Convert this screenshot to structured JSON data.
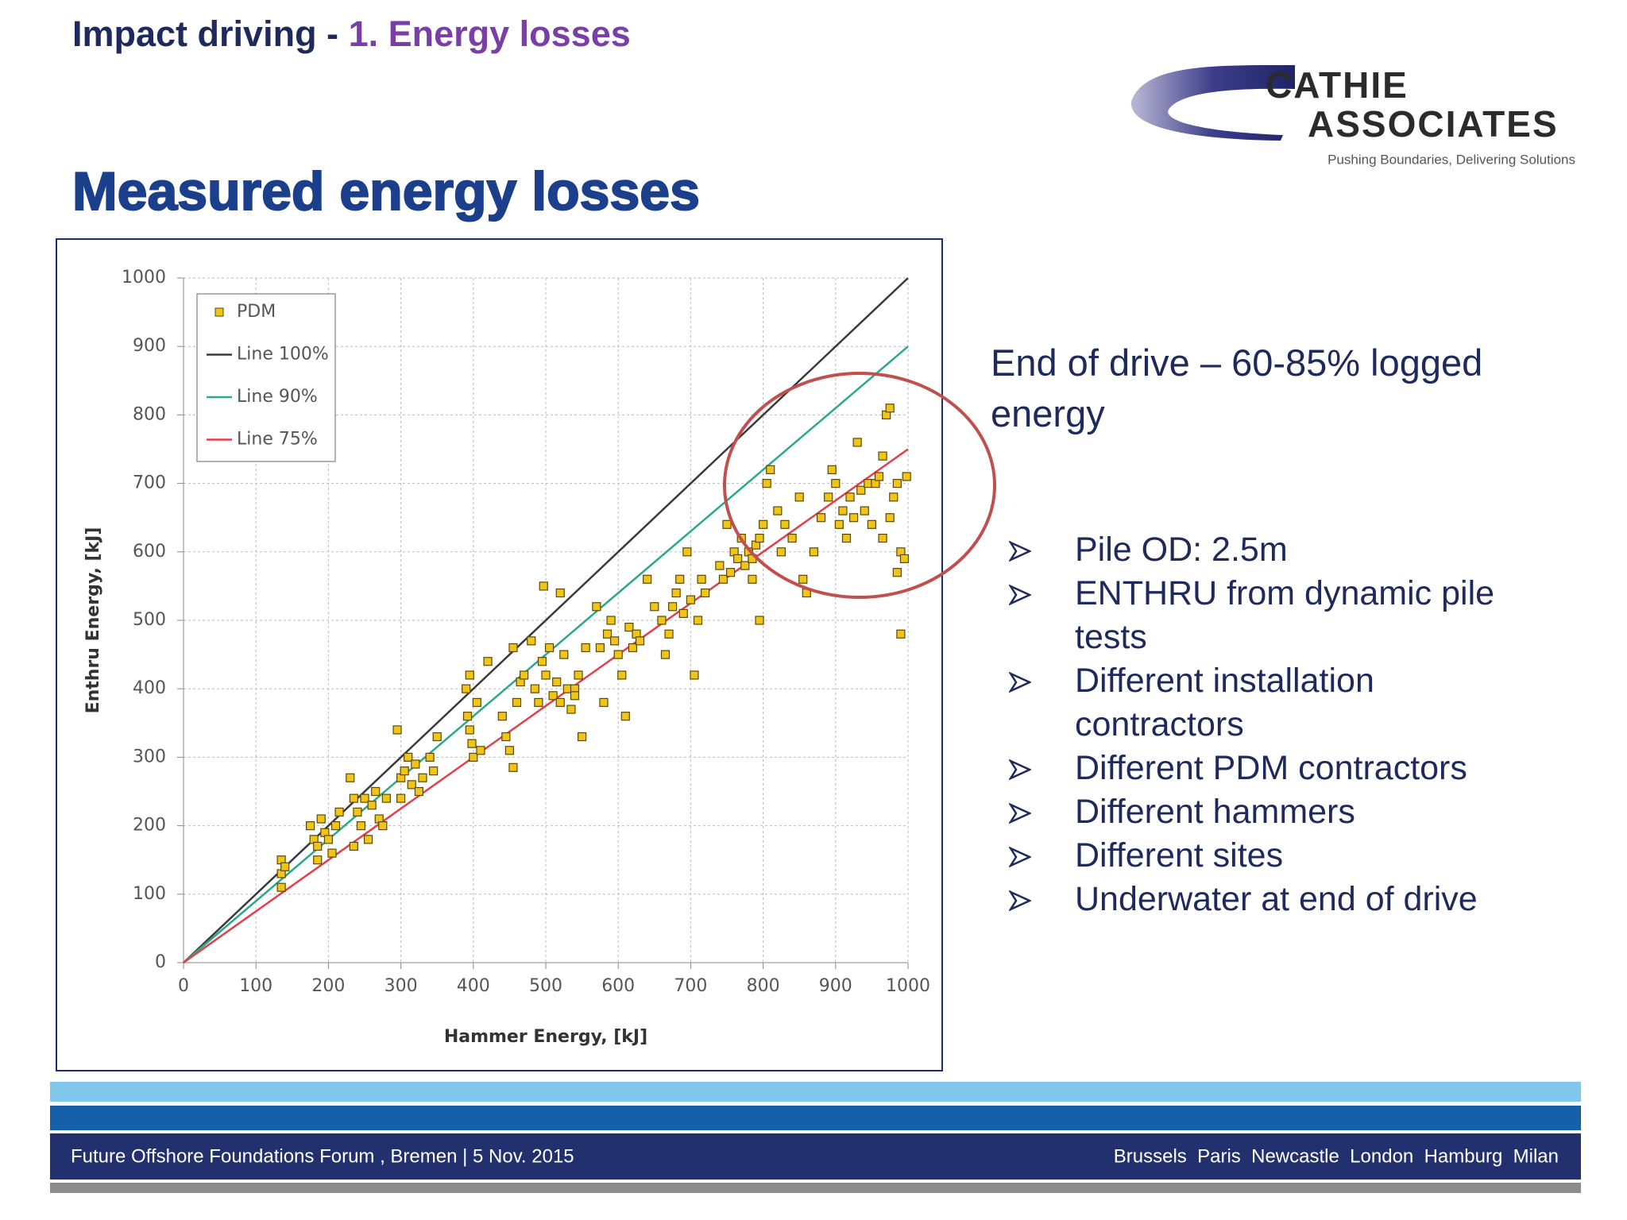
{
  "header": {
    "title_main": "Impact driving -",
    "title_sub": "1. Energy losses"
  },
  "logo": {
    "line1": "CATHIE",
    "line2": "ASSOCIATES",
    "tagline": "Pushing Boundaries, Delivering Solutions"
  },
  "heading": "Measured energy losses",
  "chart_data": {
    "type": "scatter",
    "x_label": "Hammer Energy, [kJ]",
    "y_label": "Enthru Energy, [kJ]",
    "xlim": [
      0,
      1000
    ],
    "ylim": [
      0,
      1000
    ],
    "xticks": [
      0,
      100,
      200,
      300,
      400,
      500,
      600,
      700,
      800,
      900,
      1000
    ],
    "yticks": [
      0,
      100,
      200,
      300,
      400,
      500,
      600,
      700,
      800,
      900,
      1000
    ],
    "grid": true,
    "legend": "upper left",
    "series": [
      {
        "name": "PDM",
        "mode": "markers",
        "color": "#f0c419",
        "x": [
          135,
          135,
          135,
          140,
          175,
          180,
          185,
          190,
          195,
          200,
          205,
          210,
          215,
          185,
          230,
          235,
          240,
          245,
          250,
          255,
          260,
          265,
          270,
          275,
          280,
          235,
          295,
          300,
          305,
          310,
          315,
          320,
          325,
          330,
          340,
          345,
          350,
          300,
          390,
          392,
          395,
          398,
          400,
          405,
          410,
          420,
          395,
          440,
          445,
          450,
          455,
          460,
          465,
          470,
          455,
          480,
          485,
          490,
          495,
          500,
          505,
          510,
          515,
          520,
          525,
          530,
          535,
          540,
          545,
          550,
          555,
          497,
          520,
          540,
          570,
          575,
          580,
          585,
          590,
          595,
          600,
          605,
          610,
          615,
          620,
          625,
          630,
          640,
          650,
          660,
          665,
          670,
          675,
          680,
          685,
          690,
          695,
          700,
          705,
          710,
          715,
          720,
          740,
          745,
          750,
          755,
          760,
          765,
          770,
          775,
          780,
          785,
          790,
          795,
          800,
          795,
          785,
          805,
          810,
          820,
          825,
          830,
          840,
          850,
          855,
          860,
          870,
          880,
          890,
          895,
          900,
          905,
          910,
          915,
          920,
          925,
          930,
          935,
          940,
          945,
          950,
          955,
          960,
          965,
          970,
          975,
          980,
          985,
          990,
          995,
          990,
          985,
          998,
          975,
          965
        ],
        "values": [
          150,
          130,
          110,
          140,
          200,
          180,
          170,
          210,
          190,
          180,
          160,
          200,
          220,
          150,
          270,
          240,
          220,
          200,
          240,
          180,
          230,
          250,
          210,
          200,
          240,
          170,
          340,
          270,
          280,
          300,
          260,
          290,
          250,
          270,
          300,
          280,
          330,
          240,
          400,
          360,
          340,
          320,
          300,
          380,
          310,
          440,
          420,
          360,
          330,
          310,
          460,
          380,
          410,
          420,
          285,
          470,
          400,
          380,
          440,
          420,
          460,
          390,
          410,
          380,
          450,
          400,
          370,
          400,
          420,
          330,
          460,
          550,
          540,
          390,
          520,
          460,
          380,
          480,
          500,
          470,
          450,
          420,
          360,
          490,
          460,
          480,
          470,
          560,
          520,
          500,
          450,
          480,
          520,
          540,
          560,
          510,
          600,
          530,
          420,
          500,
          560,
          540,
          580,
          560,
          640,
          570,
          600,
          590,
          620,
          580,
          600,
          560,
          610,
          620,
          640,
          500,
          590,
          700,
          720,
          660,
          600,
          640,
          620,
          680,
          560,
          540,
          600,
          650,
          680,
          720,
          700,
          640,
          660,
          620,
          680,
          650,
          760,
          690,
          660,
          700,
          640,
          700,
          710,
          740,
          800,
          810,
          680,
          700,
          600,
          590,
          480,
          570,
          710,
          650,
          620
        ]
      },
      {
        "name": "Line 100%",
        "mode": "line",
        "color": "#3a3a3a",
        "x": [
          0,
          1000
        ],
        "values": [
          0,
          1000
        ]
      },
      {
        "name": "Line 90%",
        "mode": "line",
        "color": "#2aa88a",
        "x": [
          0,
          1000
        ],
        "values": [
          0,
          900
        ]
      },
      {
        "name": "Line 75%",
        "mode": "line",
        "color": "#e0404c",
        "x": [
          0,
          1000
        ],
        "values": [
          0,
          750
        ]
      }
    ]
  },
  "callout": "End of drive – 60-85% logged energy",
  "bullets": [
    "Pile OD: 2.5m",
    "ENTHRU from dynamic pile tests",
    "Different installation contractors",
    "Different PDM contractors",
    "Different hammers",
    "Different sites",
    "Underwater at end of drive"
  ],
  "footer": {
    "left": "Future Offshore Foundations Forum , Bremen | 5 Nov. 2015",
    "right": "Brussels  Paris  Newcastle  London  Hamburg  Milan"
  }
}
